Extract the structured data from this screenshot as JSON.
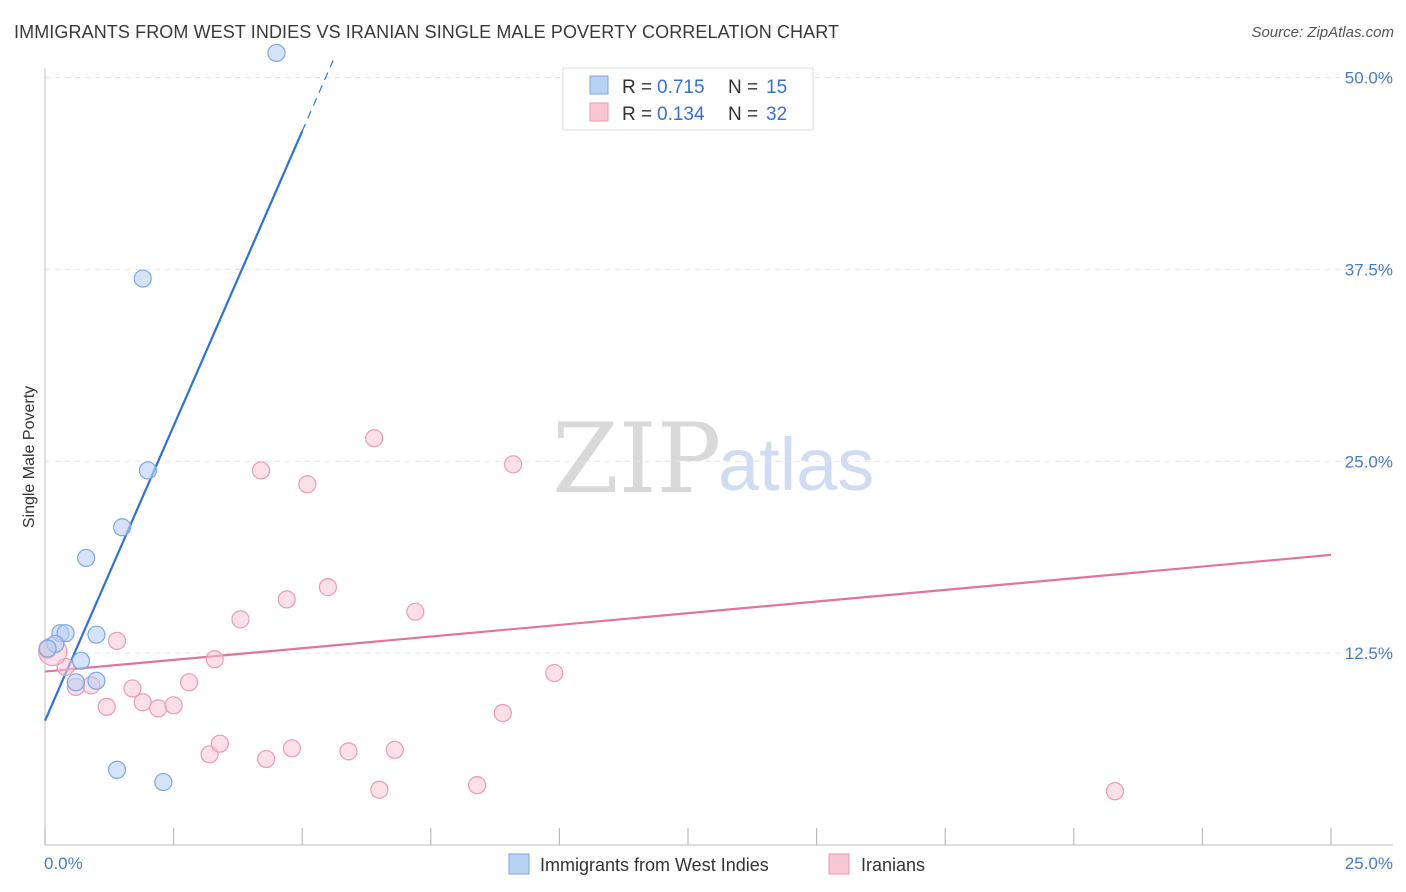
{
  "title": "IMMIGRANTS FROM WEST INDIES VS IRANIAN SINGLE MALE POVERTY CORRELATION CHART",
  "source": "Source: ZipAtlas.com",
  "watermark": {
    "zip": "ZIP",
    "atlas": "atlas"
  },
  "legend_top": [
    {
      "r_label": "R = ",
      "r_value": "0.715",
      "n_label": "N = ",
      "n_value": "15"
    },
    {
      "r_label": "R = ",
      "r_value": "0.134",
      "n_label": "N = ",
      "n_value": "32"
    }
  ],
  "legend_bottom": [
    "Immigrants from West Indies",
    "Iranians"
  ],
  "chart_data": {
    "type": "scatter",
    "title": "IMMIGRANTS FROM WEST INDIES VS IRANIAN SINGLE MALE POVERTY CORRELATION CHART",
    "xlabel": "",
    "ylabel": "Single Male Poverty",
    "xlim": [
      0,
      25
    ],
    "ylim": [
      0,
      50
    ],
    "x_tick_labels": [
      "0.0%",
      "25.0%"
    ],
    "y_ticks": [
      12.5,
      25.0,
      37.5,
      50.0
    ],
    "y_tick_labels": [
      "12.5%",
      "25.0%",
      "37.5%",
      "50.0%"
    ],
    "colors": {
      "west_indies_fill": "#b9d1f3",
      "west_indies_stroke": "#7ea6e0",
      "west_indies_line": "#2f73cf",
      "iranians_fill": "#f9c6d6",
      "iranians_stroke": "#ec9ab5",
      "iranians_line": "#e3739a"
    },
    "series": [
      {
        "name": "Immigrants from West Indies",
        "R": 0.715,
        "N": 15,
        "trend": {
          "x0": 0,
          "y0": 8.1,
          "x1": 5.0,
          "y1": 46.5,
          "dash_to_x": 5.6
        },
        "points": [
          [
            4.5,
            51.6
          ],
          [
            1.9,
            36.9
          ],
          [
            2.0,
            24.4
          ],
          [
            1.5,
            20.7
          ],
          [
            0.8,
            18.7
          ],
          [
            0.3,
            13.8
          ],
          [
            0.4,
            13.8
          ],
          [
            1.0,
            13.7
          ],
          [
            0.2,
            13.1
          ],
          [
            0.05,
            12.8
          ],
          [
            0.7,
            12.0
          ],
          [
            0.6,
            10.6
          ],
          [
            1.0,
            10.7
          ],
          [
            1.4,
            4.9
          ],
          [
            2.3,
            4.1
          ]
        ]
      },
      {
        "name": "Iranians",
        "R": 0.134,
        "N": 32,
        "trend": {
          "x0": 0,
          "y0": 11.3,
          "x1": 25,
          "y1": 18.9
        },
        "points": [
          [
            0.05,
            12.7
          ],
          [
            0.4,
            11.6
          ],
          [
            0.6,
            10.3
          ],
          [
            0.9,
            10.4
          ],
          [
            1.4,
            13.3
          ],
          [
            1.2,
            9.0
          ],
          [
            1.7,
            10.2
          ],
          [
            1.9,
            9.3
          ],
          [
            2.2,
            8.9
          ],
          [
            2.5,
            9.1
          ],
          [
            2.8,
            10.6
          ],
          [
            3.3,
            12.1
          ],
          [
            3.8,
            14.7
          ],
          [
            4.2,
            24.4
          ],
          [
            4.7,
            16.0
          ],
          [
            5.1,
            23.5
          ],
          [
            5.5,
            16.8
          ],
          [
            6.4,
            26.5
          ],
          [
            7.2,
            15.2
          ],
          [
            9.1,
            24.8
          ],
          [
            9.9,
            11.2
          ],
          [
            8.9,
            8.6
          ],
          [
            3.2,
            5.9
          ],
          [
            3.4,
            6.6
          ],
          [
            4.3,
            5.6
          ],
          [
            4.8,
            6.3
          ],
          [
            5.9,
            6.1
          ],
          [
            6.8,
            6.2
          ],
          [
            6.5,
            3.6
          ],
          [
            8.4,
            3.9
          ],
          [
            20.8,
            3.5
          ],
          [
            0.15,
            12.6
          ]
        ]
      }
    ]
  }
}
